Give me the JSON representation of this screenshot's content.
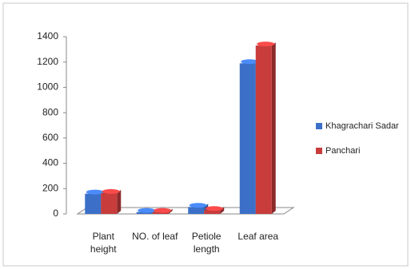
{
  "chart_data": {
    "type": "bar3d",
    "categories": [
      "Plant height",
      "NO. of leaf",
      "Petiole length",
      "Leaf area"
    ],
    "series": [
      {
        "name": "Khagrachari Sadar",
        "color": "#3c70c8",
        "values": [
          160,
          15,
          55,
          1190
        ]
      },
      {
        "name": "Panchari",
        "color": "#c83c3c",
        "values": [
          165,
          15,
          30,
          1330
        ]
      }
    ],
    "ylim": [
      0,
      1400
    ],
    "yticks": [
      0,
      200,
      400,
      600,
      800,
      1000,
      1200,
      1400
    ],
    "grid": false,
    "legend": "right"
  }
}
